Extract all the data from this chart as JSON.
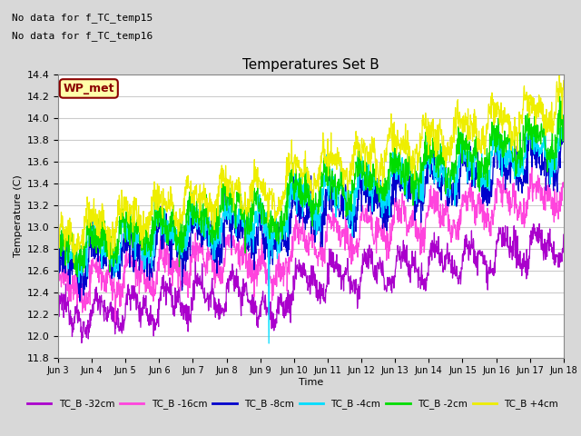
{
  "title": "Temperatures Set B",
  "xlabel": "Time",
  "ylabel": "Temperature (C)",
  "ylim": [
    11.8,
    14.4
  ],
  "annotations": [
    "No data for f_TC_temp15",
    "No data for f_TC_temp16"
  ],
  "legend_label": "WP_met",
  "series": [
    {
      "label": "TC_B -32cm",
      "color": "#aa00cc"
    },
    {
      "label": "TC_B -16cm",
      "color": "#ff44dd"
    },
    {
      "label": "TC_B -8cm",
      "color": "#0000cc"
    },
    {
      "label": "TC_B -4cm",
      "color": "#00ddff"
    },
    {
      "label": "TC_B -2cm",
      "color": "#00dd00"
    },
    {
      "label": "TC_B +4cm",
      "color": "#eeee00"
    }
  ],
  "x_tick_labels": [
    "Jun 3",
    "Jun 4",
    "Jun 5",
    "Jun 6",
    "Jun 7",
    "Jun 8",
    "Jun 9",
    "Jun 10",
    "Jun 11",
    "Jun 12",
    "Jun 13",
    "Jun 14",
    "Jun 15",
    "Jun 16",
    "Jun 17",
    "Jun 18"
  ],
  "n_points": 1440,
  "start_values": [
    12.15,
    12.42,
    12.62,
    12.72,
    12.78,
    12.92
  ],
  "end_values": [
    12.85,
    13.32,
    13.65,
    13.75,
    13.85,
    14.12
  ],
  "noise_std": [
    0.06,
    0.07,
    0.09,
    0.08,
    0.08,
    0.07
  ],
  "background_color": "#d8d8d8",
  "plot_bg_color": "#ffffff",
  "grid_color": "#cccccc"
}
